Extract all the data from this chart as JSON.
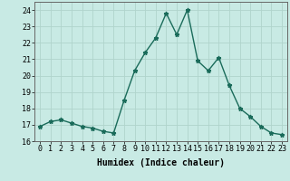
{
  "x": [
    0,
    1,
    2,
    3,
    4,
    5,
    6,
    7,
    8,
    9,
    10,
    11,
    12,
    13,
    14,
    15,
    16,
    17,
    18,
    19,
    20,
    21,
    22,
    23
  ],
  "y": [
    16.9,
    17.2,
    17.3,
    17.1,
    16.9,
    16.8,
    16.6,
    16.5,
    18.5,
    20.3,
    21.4,
    22.3,
    23.8,
    22.5,
    24.0,
    20.9,
    20.3,
    21.1,
    19.4,
    18.0,
    17.5,
    16.9,
    16.5,
    16.4
  ],
  "bg_color": "#c8eae4",
  "grid_color": "#b0d4cc",
  "line_color": "#1a6b5a",
  "marker": "*",
  "xlabel": "Humidex (Indice chaleur)",
  "ylim": [
    16,
    24.5
  ],
  "yticks": [
    16,
    17,
    18,
    19,
    20,
    21,
    22,
    23,
    24
  ],
  "xtick_labels": [
    "0",
    "1",
    "2",
    "3",
    "4",
    "5",
    "6",
    "7",
    "8",
    "9",
    "1011",
    "1213",
    "1415",
    "1617",
    "1819",
    "2021",
    "2223"
  ],
  "xlabel_fontsize": 7,
  "tick_fontsize": 6,
  "line_width": 1.0,
  "marker_size": 3.5
}
